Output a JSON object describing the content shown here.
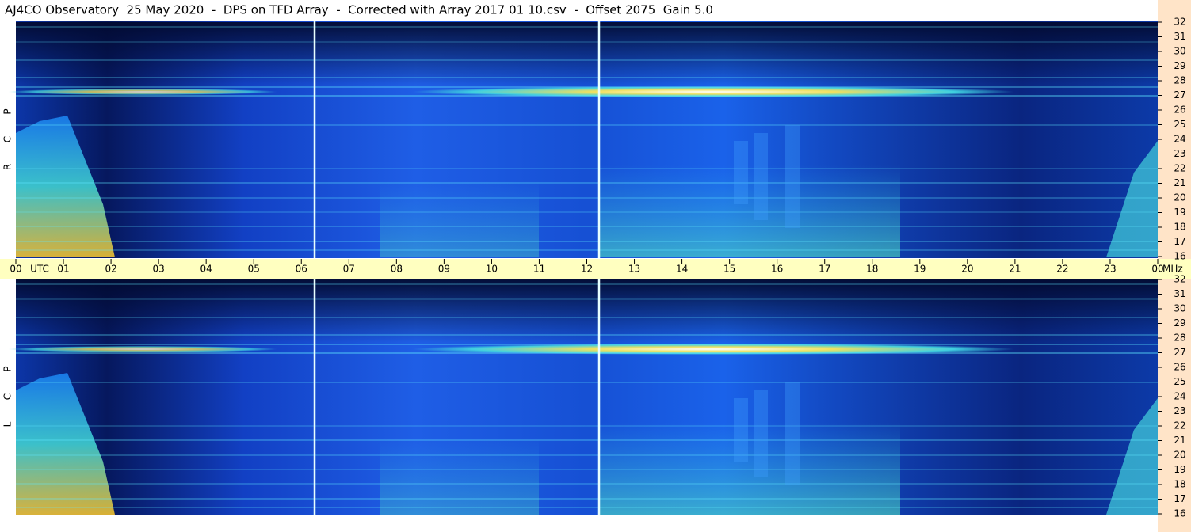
{
  "header": {
    "title": "AJ4CO Observatory  25 May 2020  -  DPS on TFD Array  -  Corrected with Array 2017 01 10.csv  -  Offset 2075  Gain 5.0"
  },
  "panels": [
    {
      "label": [
        "P",
        "C",
        "R"
      ]
    },
    {
      "label": [
        "P",
        "C",
        "L"
      ]
    }
  ],
  "frequency_ticks": [
    "32",
    "31",
    "30",
    "29",
    "28",
    "27",
    "26",
    "25",
    "24",
    "23",
    "22",
    "21",
    "20",
    "19",
    "18",
    "17",
    "16"
  ],
  "time_axis": {
    "hours": [
      "00",
      "01",
      "02",
      "03",
      "04",
      "05",
      "06",
      "07",
      "08",
      "09",
      "10",
      "11",
      "12",
      "13",
      "14",
      "15",
      "16",
      "17",
      "18",
      "19",
      "20",
      "21",
      "22",
      "23",
      "00"
    ],
    "zone": "UTC",
    "unit": "MHz"
  }
}
